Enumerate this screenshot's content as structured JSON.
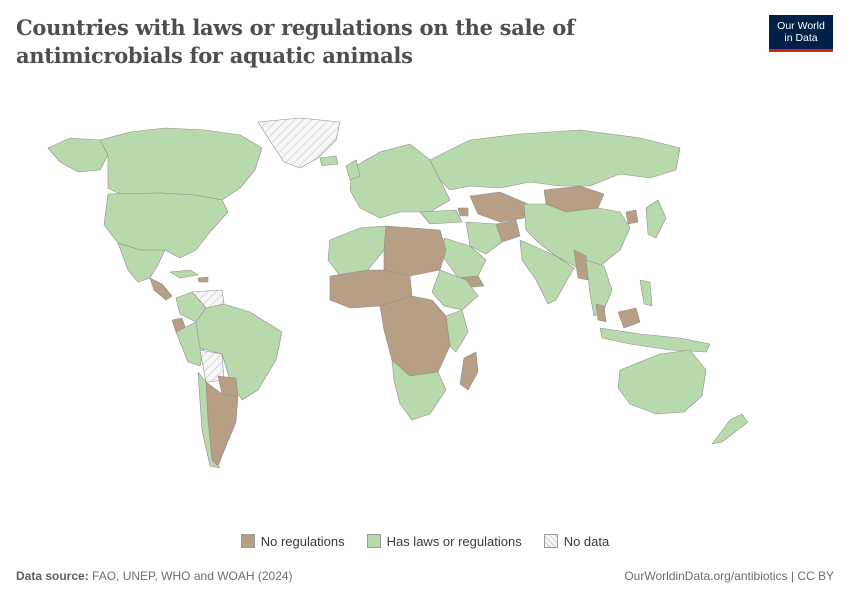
{
  "title": "Countries with laws or regulations on the sale of antimicrobials for aquatic animals",
  "logo": {
    "line1": "Our World",
    "line2": "in Data"
  },
  "colors": {
    "no_regulations": "#b79f86",
    "has_laws": "#b8d9ab",
    "no_data": "#f2f2f2",
    "border": "#8f8f8f",
    "logo_bg": "#002147",
    "logo_accent": "#ce261e"
  },
  "legend": {
    "no_regulations": "No regulations",
    "has_laws": "Has laws or regulations",
    "no_data": "No data"
  },
  "footer": {
    "source_label": "Data source:",
    "source_text": "FAO, UNEP, WHO and WOAH (2024)",
    "credit": "OurWorldinData.org/antibiotics | CC BY"
  },
  "chart_data": {
    "type": "choropleth",
    "categories": [
      "No regulations",
      "Has laws or regulations",
      "No data"
    ],
    "regions": [
      {
        "name": "Canada",
        "category": "Has laws or regulations"
      },
      {
        "name": "United States",
        "category": "Has laws or regulations"
      },
      {
        "name": "Greenland",
        "category": "No data"
      },
      {
        "name": "Mexico",
        "category": "Has laws or regulations"
      },
      {
        "name": "Central America",
        "category": "No regulations"
      },
      {
        "name": "Venezuela",
        "category": "No data"
      },
      {
        "name": "Colombia",
        "category": "Has laws or regulations"
      },
      {
        "name": "Ecuador",
        "category": "No regulations"
      },
      {
        "name": "Brazil",
        "category": "Has laws or regulations"
      },
      {
        "name": "Peru",
        "category": "Has laws or regulations"
      },
      {
        "name": "Bolivia",
        "category": "No data"
      },
      {
        "name": "Paraguay",
        "category": "No regulations"
      },
      {
        "name": "Argentina",
        "category": "No regulations"
      },
      {
        "name": "Chile",
        "category": "Has laws or regulations"
      },
      {
        "name": "Europe",
        "category": "Has laws or regulations"
      },
      {
        "name": "Russia",
        "category": "Has laws or regulations"
      },
      {
        "name": "Mongolia",
        "category": "No regulations"
      },
      {
        "name": "China",
        "category": "Has laws or regulations"
      },
      {
        "name": "Central Asia",
        "category": "No regulations"
      },
      {
        "name": "Afghanistan",
        "category": "No regulations"
      },
      {
        "name": "Iran",
        "category": "Has laws or regulations"
      },
      {
        "name": "Saudi Arabia",
        "category": "Has laws or regulations"
      },
      {
        "name": "Yemen",
        "category": "No regulations"
      },
      {
        "name": "India",
        "category": "Has laws or regulations"
      },
      {
        "name": "Myanmar",
        "category": "No regulations"
      },
      {
        "name": "Southeast Asia",
        "category": "Has laws or regulations"
      },
      {
        "name": "North Korea",
        "category": "No regulations"
      },
      {
        "name": "Japan",
        "category": "Has laws or regulations"
      },
      {
        "name": "North Africa",
        "category": "No regulations"
      },
      {
        "name": "Sahel",
        "category": "No regulations"
      },
      {
        "name": "Central Africa",
        "category": "No regulations"
      },
      {
        "name": "East Africa",
        "category": "Has laws or regulations"
      },
      {
        "name": "Southern Africa",
        "category": "Has laws or regulations"
      },
      {
        "name": "Madagascar",
        "category": "No regulations"
      },
      {
        "name": "Australia",
        "category": "Has laws or regulations"
      },
      {
        "name": "New Zealand",
        "category": "Has laws or regulations"
      },
      {
        "name": "Indonesia",
        "category": "Has laws or regulations"
      }
    ]
  }
}
